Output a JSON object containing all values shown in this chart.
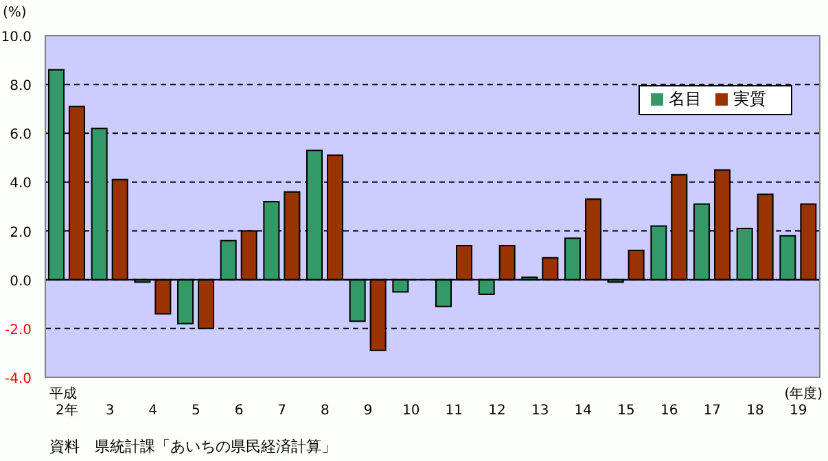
{
  "chart_data": {
    "type": "bar",
    "ylabel": "(%)",
    "categories": [
      "2年",
      "3",
      "4",
      "5",
      "6",
      "7",
      "8",
      "9",
      "10",
      "11",
      "12",
      "13",
      "14",
      "15",
      "16",
      "17",
      "18",
      "19"
    ],
    "series": [
      {
        "name": "名目",
        "color": "#339966",
        "values": [
          8.6,
          6.2,
          -0.1,
          -1.8,
          1.6,
          3.2,
          5.3,
          -1.7,
          -0.5,
          -1.1,
          -0.6,
          0.1,
          1.7,
          -0.1,
          2.2,
          3.1,
          2.1,
          1.8
        ]
      },
      {
        "name": "実質",
        "color": "#993300",
        "values": [
          7.1,
          4.1,
          -1.4,
          -2.0,
          2.0,
          3.6,
          5.1,
          -2.9,
          0.0,
          1.4,
          1.4,
          0.9,
          3.3,
          1.2,
          4.3,
          4.5,
          3.5,
          3.1
        ]
      }
    ],
    "ylim": [
      -4,
      10
    ],
    "yticks": [
      {
        "value": -4,
        "label": "-4.0"
      },
      {
        "value": -2,
        "label": "-2.0"
      },
      {
        "value": 0,
        "label": "0.0"
      },
      {
        "value": 2,
        "label": "2.0"
      },
      {
        "value": 4,
        "label": "4.0"
      },
      {
        "value": 6,
        "label": "6.0"
      },
      {
        "value": 8,
        "label": "8.0"
      },
      {
        "value": 10,
        "label": "10.0"
      }
    ],
    "grid": "y",
    "legend": "top right",
    "annotations": [
      "平成",
      "(年度)",
      "資料　県統計課「あいちの県民経済計算」"
    ]
  }
}
